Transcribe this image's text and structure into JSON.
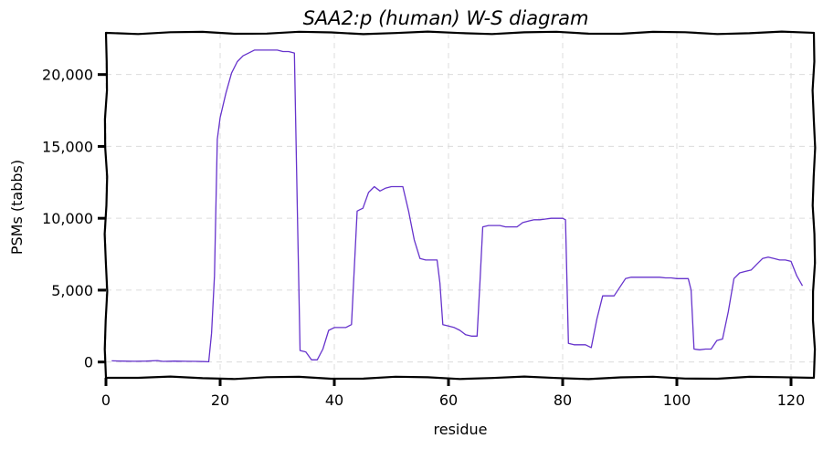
{
  "chart_data": {
    "type": "line",
    "title": "SAA2:p (human) W-S diagram",
    "xlabel": "residue",
    "ylabel": "PSMs (tabbs)",
    "xlim": [
      0,
      124
    ],
    "ylim": [
      -1100,
      22900
    ],
    "x_ticks": [
      0,
      20,
      40,
      60,
      80,
      100,
      120
    ],
    "y_ticks": [
      0,
      5000,
      10000,
      15000,
      20000
    ],
    "x_tick_labels": [
      "0",
      "20",
      "40",
      "60",
      "80",
      "100",
      "120"
    ],
    "y_tick_labels": [
      "0",
      "5,000",
      "10,000",
      "15,000",
      "20,000"
    ],
    "grid": true,
    "color": "#6633cc",
    "series": [
      {
        "x": [
          1,
          3,
          5,
          7,
          9,
          10,
          12,
          14,
          16,
          17,
          18,
          18.5,
          19,
          19.5,
          20,
          21,
          22,
          23,
          24,
          25,
          26,
          27,
          28,
          29,
          30,
          31,
          32,
          33,
          33.5,
          34,
          35,
          36,
          37,
          38,
          39,
          40,
          41,
          42,
          43,
          44,
          44.5,
          45,
          46,
          47,
          48,
          49,
          50,
          51,
          52,
          53,
          54,
          55,
          56,
          57,
          58,
          58.5,
          59,
          60,
          61,
          62,
          63,
          64,
          65,
          65.5,
          66,
          67,
          68,
          69,
          70,
          71,
          72,
          73,
          74,
          75,
          76,
          77,
          78,
          79,
          80,
          80.5,
          81,
          82,
          83,
          84,
          85,
          86,
          87,
          88,
          89,
          90,
          91,
          92,
          93,
          94,
          95,
          96,
          97,
          98,
          99,
          100,
          101,
          102,
          102.5,
          103,
          104,
          105,
          106,
          107,
          108,
          109,
          110,
          111,
          112,
          113,
          114,
          115,
          116,
          117,
          118,
          119,
          120,
          121,
          122
        ],
        "y": [
          80,
          60,
          50,
          60,
          100,
          40,
          60,
          50,
          40,
          30,
          20,
          2000,
          6000,
          15500,
          17000,
          18700,
          20100,
          20900,
          21300,
          21500,
          21700,
          21700,
          21700,
          21700,
          21700,
          21600,
          21600,
          21500,
          11000,
          800,
          700,
          150,
          150,
          900,
          2200,
          2400,
          2400,
          2400,
          2600,
          10500,
          10600,
          10700,
          11800,
          12200,
          11900,
          12100,
          12200,
          12200,
          12200,
          10500,
          8500,
          7200,
          7100,
          7100,
          7100,
          5500,
          2600,
          2500,
          2400,
          2200,
          1900,
          1800,
          1800,
          5500,
          9400,
          9500,
          9500,
          9500,
          9400,
          9400,
          9400,
          9700,
          9800,
          9900,
          9900,
          9950,
          10000,
          10000,
          10000,
          9900,
          1300,
          1200,
          1200,
          1200,
          1000,
          3000,
          4600,
          4600,
          4600,
          5200,
          5800,
          5900,
          5900,
          5900,
          5900,
          5900,
          5900,
          5850,
          5850,
          5800,
          5800,
          5800,
          5000,
          900,
          850,
          900,
          900,
          1500,
          1600,
          3500,
          5800,
          6200,
          6300,
          6400,
          6800,
          7200,
          7300,
          7200,
          7100,
          7100,
          7000,
          6000,
          5300
        ]
      }
    ]
  }
}
